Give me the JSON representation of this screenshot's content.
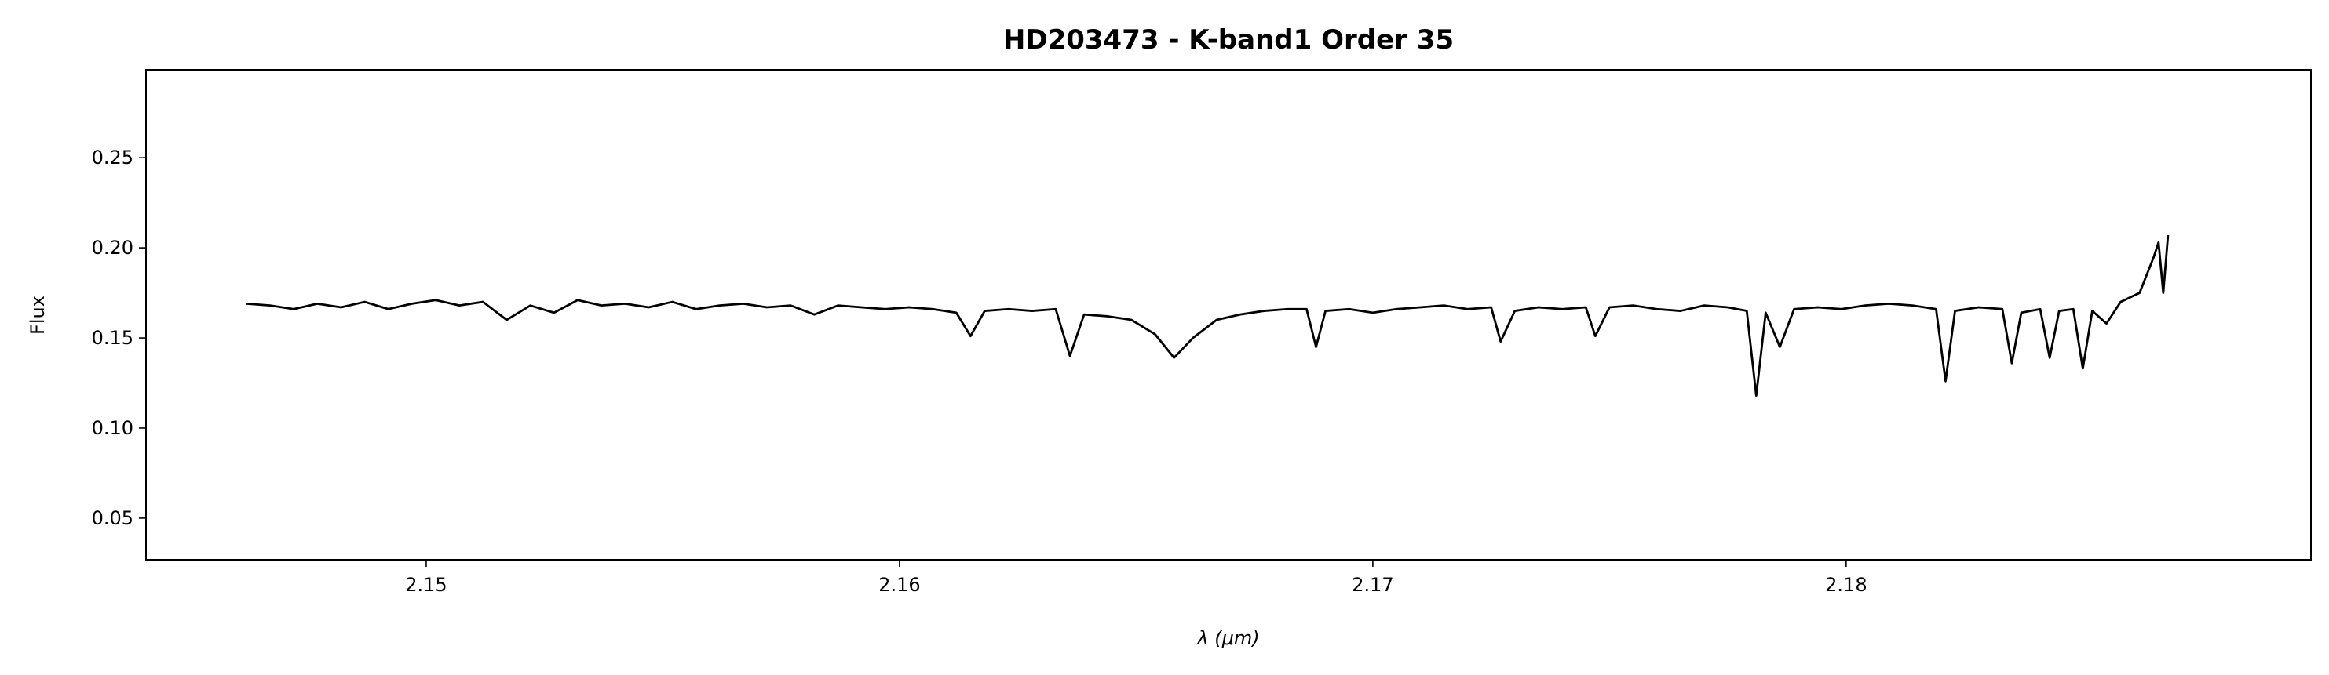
{
  "chart_data": {
    "type": "line",
    "title": "HD203473 - K-band1 Order 35",
    "xlabel": "λ (μm)",
    "ylabel": "Flux",
    "x": [
      2.1462,
      2.1467,
      2.1472,
      2.1477,
      2.1482,
      2.1487,
      2.1492,
      2.1497,
      2.1502,
      2.1507,
      2.1512,
      2.1517,
      2.1522,
      2.1527,
      2.1532,
      2.1537,
      2.1542,
      2.1547,
      2.1552,
      2.1557,
      2.1562,
      2.1567,
      2.1572,
      2.1577,
      2.1582,
      2.1587,
      2.1592,
      2.1597,
      2.1602,
      2.1607,
      2.1612,
      2.1615,
      2.1618,
      2.1623,
      2.1628,
      2.1633,
      2.1636,
      2.1639,
      2.1644,
      2.1649,
      2.1654,
      2.1658,
      2.1662,
      2.1667,
      2.1672,
      2.1677,
      2.1682,
      2.1686,
      2.1688,
      2.169,
      2.1695,
      2.17,
      2.1705,
      2.171,
      2.1715,
      2.172,
      2.1725,
      2.1727,
      2.173,
      2.1735,
      2.174,
      2.1745,
      2.1747,
      2.175,
      2.1755,
      2.176,
      2.1765,
      2.177,
      2.1775,
      2.1779,
      2.1781,
      2.1783,
      2.1786,
      2.1789,
      2.1794,
      2.1799,
      2.1804,
      2.1809,
      2.1814,
      2.1819,
      2.1821,
      2.1823,
      2.1828,
      2.1833,
      2.1835,
      2.1837,
      2.1841,
      2.1843,
      2.1845,
      2.1848,
      2.185,
      2.1852,
      2.1855,
      2.1858,
      2.1862,
      2.1865,
      2.1866,
      2.1867,
      2.1868
    ],
    "values": [
      0.169,
      0.168,
      0.166,
      0.169,
      0.167,
      0.17,
      0.166,
      0.169,
      0.171,
      0.168,
      0.17,
      0.16,
      0.168,
      0.164,
      0.171,
      0.168,
      0.169,
      0.167,
      0.17,
      0.166,
      0.168,
      0.169,
      0.167,
      0.168,
      0.163,
      0.168,
      0.167,
      0.166,
      0.167,
      0.166,
      0.164,
      0.151,
      0.165,
      0.166,
      0.165,
      0.166,
      0.14,
      0.163,
      0.162,
      0.16,
      0.152,
      0.139,
      0.15,
      0.16,
      0.163,
      0.165,
      0.166,
      0.166,
      0.145,
      0.165,
      0.166,
      0.164,
      0.166,
      0.167,
      0.168,
      0.166,
      0.167,
      0.148,
      0.165,
      0.167,
      0.166,
      0.167,
      0.151,
      0.167,
      0.168,
      0.166,
      0.165,
      0.168,
      0.167,
      0.165,
      0.118,
      0.164,
      0.145,
      0.166,
      0.167,
      0.166,
      0.168,
      0.169,
      0.168,
      0.166,
      0.126,
      0.165,
      0.167,
      0.166,
      0.136,
      0.164,
      0.166,
      0.139,
      0.165,
      0.166,
      0.133,
      0.165,
      0.158,
      0.17,
      0.175,
      0.195,
      0.203,
      0.175,
      0.207
    ],
    "color": "#000000",
    "xlim": [
      2.14408,
      2.18982
    ],
    "xticks": [
      2.15,
      2.16,
      2.17,
      2.18
    ],
    "ylim": [
      0.0269,
      0.2988
    ],
    "yticks": [
      0.05,
      {
        "value": 0.1,
        "label": "0.10"
      },
      0.15,
      {
        "value": 0.2,
        "label": "0.20"
      },
      0.25
    ]
  }
}
